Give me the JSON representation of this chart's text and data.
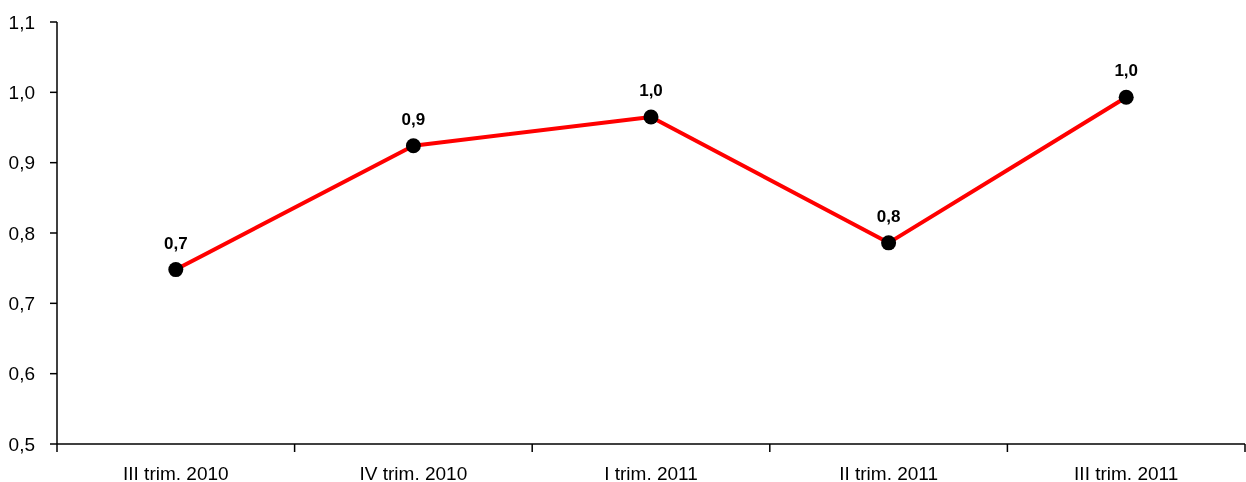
{
  "chart_data": {
    "type": "line",
    "categories": [
      "III trim. 2010",
      "IV trim. 2010",
      "I trim. 2011",
      "II trim. 2011",
      "III trim. 2011"
    ],
    "series": [
      {
        "color": "#ff0000",
        "values": [
          0.748,
          0.924,
          0.965,
          0.786,
          0.993
        ],
        "value_labels": [
          "0,7",
          "0,9",
          "1,0",
          "0,8",
          "1,0"
        ]
      }
    ],
    "ylim": [
      0.5,
      1.1
    ],
    "yticks": [
      {
        "value": 0.5,
        "label": "0,5"
      },
      {
        "value": 0.6,
        "label": "0,6"
      },
      {
        "value": 0.7,
        "label": "0,7"
      },
      {
        "value": 0.8,
        "label": "0,8"
      },
      {
        "value": 0.9,
        "label": "0,9"
      },
      {
        "value": 1.0,
        "label": "1,0"
      },
      {
        "value": 1.1,
        "label": "1,1"
      }
    ],
    "marker": "circle",
    "line_style": "solid"
  }
}
